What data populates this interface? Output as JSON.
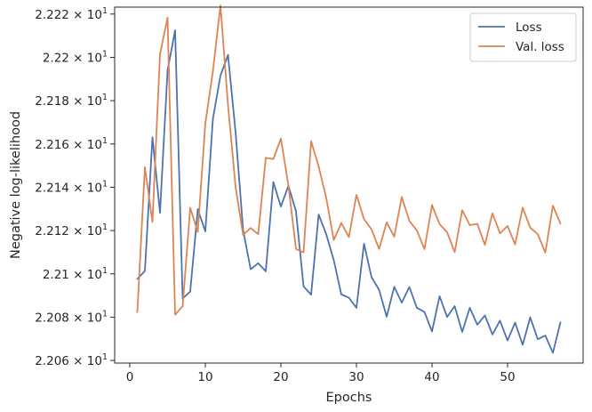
{
  "chart_data": {
    "type": "line",
    "xlabel": "Epochs",
    "ylabel": "Negative log-likelihood",
    "xlim": [
      -2,
      60
    ],
    "ylim": [
      22.0588,
      22.2232
    ],
    "x_ticks": [
      0,
      10,
      20,
      30,
      40,
      50
    ],
    "y_ticks": [
      {
        "value": 22.06,
        "mantissa": "2.206"
      },
      {
        "value": 22.08,
        "mantissa": "2.208"
      },
      {
        "value": 22.1,
        "mantissa": "2.21"
      },
      {
        "value": 22.12,
        "mantissa": "2.212"
      },
      {
        "value": 22.14,
        "mantissa": "2.214"
      },
      {
        "value": 22.16,
        "mantissa": "2.216"
      },
      {
        "value": 22.18,
        "mantissa": "2.218"
      },
      {
        "value": 22.2,
        "mantissa": "2.22"
      },
      {
        "value": 22.22,
        "mantissa": "2.222"
      }
    ],
    "y_tick_multiplier": "× 10",
    "y_tick_exponent": "1",
    "grid": false,
    "legend_position": "top-right",
    "x": [
      1,
      2,
      3,
      4,
      5,
      6,
      7,
      8,
      9,
      10,
      11,
      12,
      13,
      14,
      15,
      16,
      17,
      18,
      19,
      20,
      21,
      22,
      23,
      24,
      25,
      26,
      27,
      28,
      29,
      30,
      31,
      32,
      33,
      34,
      35,
      36,
      37,
      38,
      39,
      40,
      41,
      42,
      43,
      44,
      45,
      46,
      47,
      48,
      49,
      50,
      51,
      52,
      53,
      54,
      55,
      56,
      57
    ],
    "series": [
      {
        "name": "Loss",
        "color": "#4c72b0",
        "values": [
          22.0977,
          22.1013,
          22.1631,
          22.1282,
          22.1939,
          22.2125,
          22.0886,
          22.0918,
          22.1299,
          22.1196,
          22.1715,
          22.1916,
          22.2011,
          22.1655,
          22.1202,
          22.1021,
          22.1049,
          22.1012,
          22.1424,
          22.1311,
          22.1407,
          22.1289,
          22.0942,
          22.0904,
          22.1274,
          22.1183,
          22.1063,
          22.0905,
          22.089,
          22.0843,
          22.1139,
          22.0984,
          22.0926,
          22.0802,
          22.094,
          22.0867,
          22.0939,
          22.0843,
          22.0824,
          22.0734,
          22.0897,
          22.0801,
          22.0851,
          22.0732,
          22.0843,
          22.0765,
          22.0808,
          22.072,
          22.0784,
          22.0692,
          22.0775,
          22.0672,
          22.0799,
          22.0698,
          22.0715,
          22.0635,
          22.0776
        ]
      },
      {
        "name": "Val. loss",
        "color": "#dd8452",
        "values": [
          22.0823,
          22.1493,
          22.124,
          22.2015,
          22.2183,
          22.0811,
          22.0851,
          22.1305,
          22.1193,
          22.1695,
          22.1936,
          22.224,
          22.178,
          22.1403,
          22.118,
          22.1212,
          22.1183,
          22.1536,
          22.153,
          22.1625,
          22.1408,
          22.1115,
          22.1099,
          22.1613,
          22.1496,
          22.1351,
          22.1156,
          22.1235,
          22.117,
          22.1365,
          22.1253,
          22.1205,
          22.1115,
          22.1238,
          22.1172,
          22.1355,
          22.1245,
          22.12,
          22.1114,
          22.1318,
          22.123,
          22.1192,
          22.11,
          22.1294,
          22.1225,
          22.1231,
          22.1134,
          22.128,
          22.1187,
          22.1221,
          22.1136,
          22.1306,
          22.1213,
          22.1183,
          22.1098,
          22.1315,
          22.1232
        ]
      }
    ]
  }
}
